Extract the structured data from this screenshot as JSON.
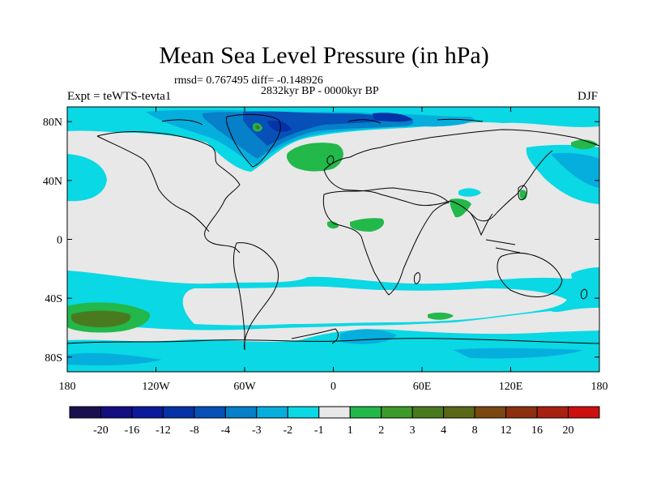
{
  "title": "Mean Sea Level Pressure (in hPa)",
  "stats_text": "rmsd= 0.767495 diff= -0.148926",
  "period_text": "2832kyr BP - 0000kyr BP",
  "experiment_text": "Expt = teWTS-tevta1",
  "season": "DJF",
  "map": {
    "projection": "cylindrical-equidistant",
    "lon_range": [
      -180,
      180
    ],
    "lat_range": [
      -90,
      90
    ],
    "ocean_color": "#e8e8e8",
    "coastline_color": "#000000",
    "lat_ticks": [
      {
        "value": 80,
        "label": "80N"
      },
      {
        "value": 40,
        "label": "40N"
      },
      {
        "value": 0,
        "label": "0"
      },
      {
        "value": -40,
        "label": "40S"
      },
      {
        "value": -80,
        "label": "80S"
      }
    ],
    "lon_ticks": [
      {
        "value": -180,
        "label": "180"
      },
      {
        "value": -120,
        "label": "120W"
      },
      {
        "value": -60,
        "label": "60W"
      },
      {
        "value": 0,
        "label": "0"
      },
      {
        "value": 60,
        "label": "60E"
      },
      {
        "value": 120,
        "label": "120E"
      },
      {
        "value": 180,
        "label": "180"
      }
    ]
  },
  "colorbar": {
    "colors": [
      "#1a1050",
      "#140e80",
      "#0a1a9a",
      "#0632a8",
      "#0650b8",
      "#0680c8",
      "#06aede",
      "#0ad8e4",
      "#e8e8e8",
      "#22b84a",
      "#3e9a2a",
      "#4a7a20",
      "#5a6818",
      "#7a4810",
      "#8c3010",
      "#a82010",
      "#cc1010"
    ],
    "labels": [
      "-20",
      "-16",
      "-12",
      "-8",
      "-4",
      "-3",
      "-2",
      "-1",
      "1",
      "2",
      "3",
      "4",
      "8",
      "12",
      "16",
      "20"
    ]
  },
  "regions": [
    {
      "name": "southern-ocean-band",
      "level": "-1",
      "color": "#0ad8e4"
    },
    {
      "name": "antarctic-margin-minus2",
      "level": "-2",
      "color": "#06aede"
    },
    {
      "name": "arctic-minus3",
      "level": "-3",
      "color": "#0680c8"
    },
    {
      "name": "arctic-minus4",
      "level": "-4",
      "color": "#0650b8"
    },
    {
      "name": "north-atlantic-plus2",
      "level": "2",
      "color": "#22b84a"
    },
    {
      "name": "south-pacific-plus2",
      "level": "2",
      "color": "#22b84a"
    },
    {
      "name": "south-pacific-plus3",
      "level": "3",
      "color": "#4a7a20"
    }
  ]
}
